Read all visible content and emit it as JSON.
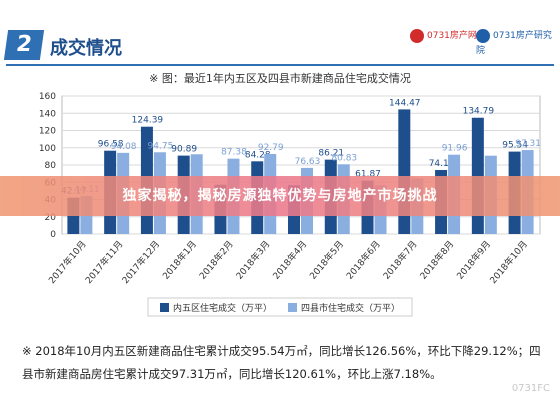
{
  "header": {
    "section_number": "2",
    "section_title": "成交情况",
    "logo_left": "0731房产网",
    "logo_right": "0731房产研究院"
  },
  "banner": {
    "text": "独家揭秘，揭秘房源独特优势与房地产市场挑战"
  },
  "footnote": {
    "text": "※ 2018年10月内五区新建商品住宅累计成交95.54万㎡，同比增长126.56%，环比下降29.12%；四县市新建商品房住宅累计成交97.31万㎡，同比增长120.61%，环比上涨7.18%。"
  },
  "watermark": "0731FC",
  "colors": {
    "series1": "#1f4e8c",
    "series2": "#8aaee0",
    "label1": "#1f4e8c",
    "label2": "#7aa0d4",
    "accent": "#2f6fb3"
  },
  "chart_data": {
    "type": "bar",
    "title": "※ 图：最近1年内五区及四县市新建商品住宅成交情况",
    "categories": [
      "2017年10月",
      "2017年11月",
      "2017年12月",
      "2018年1月",
      "2018年2月",
      "2018年3月",
      "2018年4月",
      "2018年5月",
      "2018年6月",
      "2018年7月",
      "2018年8月",
      "2018年9月",
      "2018年10月"
    ],
    "series": [
      {
        "name": "内五区住宅成交（万平）",
        "values": [
          42.17,
          96.58,
          124.39,
          90.89,
          57.08,
          84.28,
          56.57,
          86.21,
          61.87,
          144.47,
          74.18,
          134.79,
          95.54
        ]
      },
      {
        "name": "四县市住宅成交（万平）",
        "values": [
          44.11,
          94.08,
          94.75,
          92.45,
          87.38,
          92.79,
          76.63,
          80.83,
          56.38,
          64.5,
          91.96,
          90.79,
          97.31
        ]
      }
    ],
    "value_labels": [
      [
        "42.17",
        "96.58",
        "124.39",
        "90.89",
        "",
        "84.28",
        "",
        "86.21",
        "61.87",
        "144.47",
        "74.18",
        "134.79",
        "95.54"
      ],
      [
        "44.11",
        "94.08",
        "94.75",
        "",
        "87.38",
        "92.79",
        "76.63",
        "80.83",
        "",
        "",
        "91.96",
        "",
        "97.31"
      ]
    ],
    "y_ticks": [
      "0",
      "20",
      "40",
      "60",
      "80",
      "100",
      "120",
      "140",
      "160"
    ],
    "ylim": [
      0,
      160
    ],
    "legend_position": "bottom",
    "grid": true
  }
}
